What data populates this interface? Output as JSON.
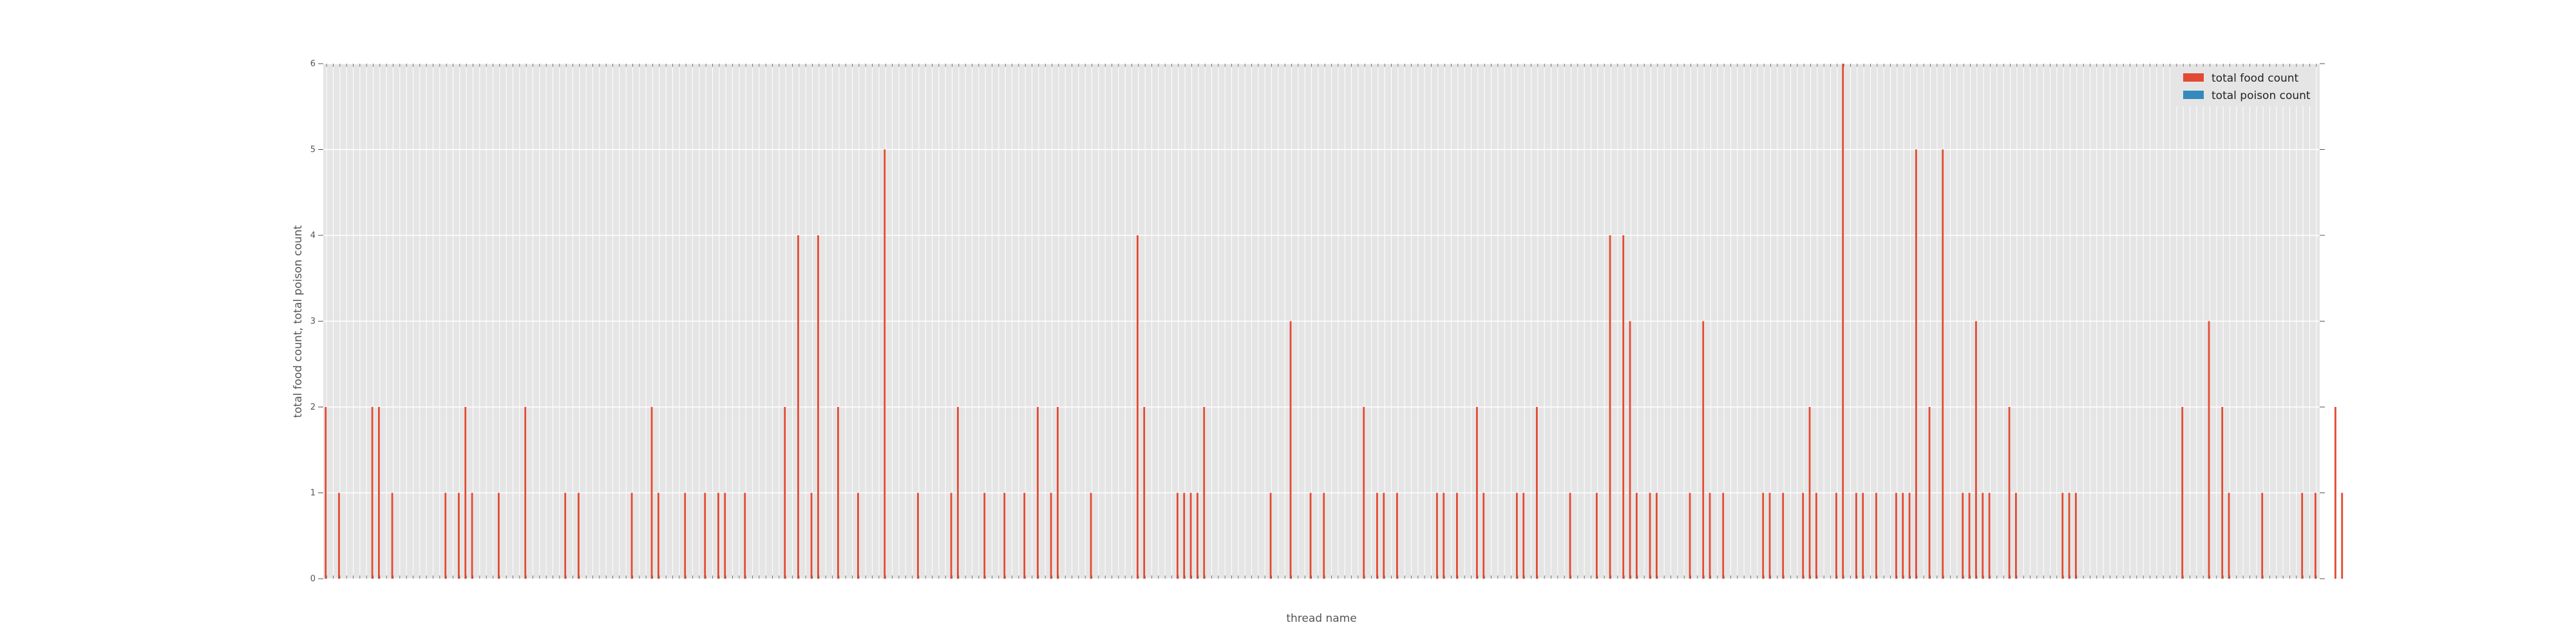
{
  "chart_data": {
    "type": "bar",
    "xlabel": "thread name",
    "ylabel": "total food count, total poison count",
    "ylim": [
      0,
      6
    ],
    "yticks": [
      0,
      1,
      2,
      3,
      4,
      5,
      6
    ],
    "grid": true,
    "legend_position": "top-right",
    "category_count": 300,
    "series": [
      {
        "name": "total food count",
        "color": "#E24A33",
        "values": [
          2,
          0,
          1,
          0,
          0,
          0,
          0,
          2,
          2,
          0,
          1,
          0,
          0,
          0,
          0,
          0,
          0,
          0,
          1,
          0,
          1,
          2,
          1,
          0,
          0,
          0,
          1,
          0,
          0,
          0,
          2,
          0,
          0,
          0,
          0,
          0,
          1,
          0,
          1,
          0,
          0,
          0,
          0,
          0,
          0,
          0,
          1,
          0,
          0,
          2,
          1,
          0,
          0,
          0,
          1,
          0,
          0,
          1,
          0,
          1,
          1,
          0,
          0,
          1,
          0,
          0,
          0,
          0,
          0,
          2,
          0,
          4,
          0,
          1,
          4,
          0,
          0,
          2,
          0,
          0,
          1,
          0,
          0,
          0,
          5,
          0,
          0,
          0,
          0,
          1,
          0,
          0,
          0,
          0,
          1,
          2,
          0,
          0,
          0,
          1,
          0,
          0,
          1,
          0,
          0,
          1,
          0,
          2,
          0,
          1,
          2,
          0,
          0,
          0,
          0,
          1,
          0,
          0,
          0,
          0,
          0,
          0,
          4,
          2,
          0,
          0,
          0,
          0,
          1,
          1,
          1,
          1,
          2,
          0,
          0,
          0,
          0,
          0,
          0,
          0,
          0,
          0,
          1,
          0,
          0,
          3,
          0,
          0,
          1,
          0,
          1,
          0,
          0,
          0,
          0,
          0,
          2,
          0,
          1,
          1,
          0,
          1,
          0,
          0,
          0,
          0,
          0,
          1,
          1,
          0,
          1,
          0,
          0,
          2,
          1,
          0,
          0,
          0,
          0,
          1,
          1,
          0,
          2,
          0,
          0,
          0,
          0,
          1,
          0,
          0,
          0,
          1,
          0,
          4,
          0,
          4,
          3,
          1,
          0,
          1,
          1,
          0,
          0,
          0,
          0,
          1,
          0,
          3,
          1,
          0,
          1,
          0,
          0,
          0,
          0,
          0,
          1,
          1,
          0,
          1,
          0,
          0,
          1,
          2,
          1,
          0,
          0,
          1,
          6,
          0,
          1,
          1,
          0,
          1,
          0,
          0,
          1,
          1,
          1,
          5,
          0,
          2,
          0,
          5,
          0,
          0,
          1,
          1,
          3,
          1,
          1,
          0,
          0,
          2,
          1,
          0,
          0,
          0,
          0,
          0,
          0,
          1,
          1,
          1,
          0,
          0,
          0,
          0,
          0,
          0,
          0,
          0,
          0,
          0,
          0,
          0,
          0,
          0,
          0,
          2,
          0,
          0,
          0,
          3,
          0,
          2,
          1,
          0,
          0,
          0,
          0,
          1,
          0,
          0,
          0,
          0,
          0,
          1,
          0,
          1,
          0,
          0,
          2,
          1,
          0,
          0,
          0,
          0,
          0,
          0,
          0,
          0,
          0,
          0,
          0,
          0,
          0,
          0,
          0,
          0
        ]
      },
      {
        "name": "total poison count",
        "color": "#348ABD",
        "values": [
          0,
          0,
          0,
          0,
          0,
          0,
          0,
          0,
          0,
          0,
          0,
          0,
          0,
          0,
          0,
          0,
          0,
          0,
          0,
          0,
          0,
          0,
          0,
          0,
          0,
          0,
          0,
          0,
          0,
          0,
          0,
          0,
          0,
          0,
          0,
          0,
          0,
          0,
          0,
          0,
          0,
          0,
          0,
          0,
          0,
          0,
          0,
          0,
          0,
          0,
          0,
          0,
          0,
          0,
          0,
          0,
          0,
          0,
          0,
          0,
          0,
          0,
          0,
          0,
          0,
          0,
          0,
          0,
          0,
          0,
          0,
          0,
          0,
          0,
          0,
          0,
          0,
          0,
          0,
          0,
          0,
          0,
          0,
          0,
          0,
          0,
          0,
          0,
          0,
          0,
          0,
          0,
          0,
          0,
          0,
          0,
          0,
          0,
          0,
          0,
          0,
          0,
          0,
          0,
          0,
          0,
          0,
          0,
          0,
          0,
          0,
          0,
          0,
          0,
          0,
          0,
          0,
          0,
          0,
          0,
          0,
          0,
          0,
          0,
          0,
          0,
          0,
          0,
          0,
          0,
          0,
          0,
          0,
          0,
          0,
          0,
          0,
          0,
          0,
          0,
          0,
          0,
          0,
          0,
          0,
          0,
          0,
          0,
          0,
          0,
          0,
          0,
          0,
          0,
          0,
          0,
          0,
          0,
          0,
          0,
          0,
          0,
          0,
          0,
          0,
          0,
          0,
          0,
          0,
          0,
          0,
          0,
          0,
          0,
          0,
          0,
          0,
          0,
          0,
          0,
          0,
          0,
          0,
          0,
          0,
          0,
          0,
          0,
          0,
          0,
          0,
          0,
          0,
          0,
          0,
          0,
          0,
          0,
          0,
          0,
          0,
          0,
          0,
          0,
          0,
          0,
          0,
          0,
          0,
          0,
          0,
          0,
          0,
          0,
          0,
          0,
          0,
          0,
          0,
          0,
          0,
          0,
          0,
          0,
          0,
          0,
          0,
          0,
          0,
          0,
          0,
          0,
          0,
          0,
          0,
          0,
          0,
          0,
          0,
          0,
          0,
          0,
          0,
          0,
          0,
          0,
          0,
          0,
          0,
          0,
          0,
          0,
          0,
          0,
          0,
          0,
          0,
          0,
          0,
          0,
          0,
          0,
          0,
          0,
          0,
          0,
          0,
          0,
          0,
          0,
          0,
          0,
          0,
          0,
          0,
          0,
          0,
          0,
          0,
          0,
          0,
          0,
          0,
          0,
          0,
          0,
          0,
          0,
          0,
          0,
          0,
          0,
          0,
          0,
          0,
          0,
          0,
          0,
          0,
          0,
          0,
          0,
          0,
          0,
          0,
          0,
          0,
          0,
          0,
          0,
          0,
          0,
          0,
          0,
          0,
          0,
          0,
          0,
          0,
          0
        ]
      }
    ]
  }
}
